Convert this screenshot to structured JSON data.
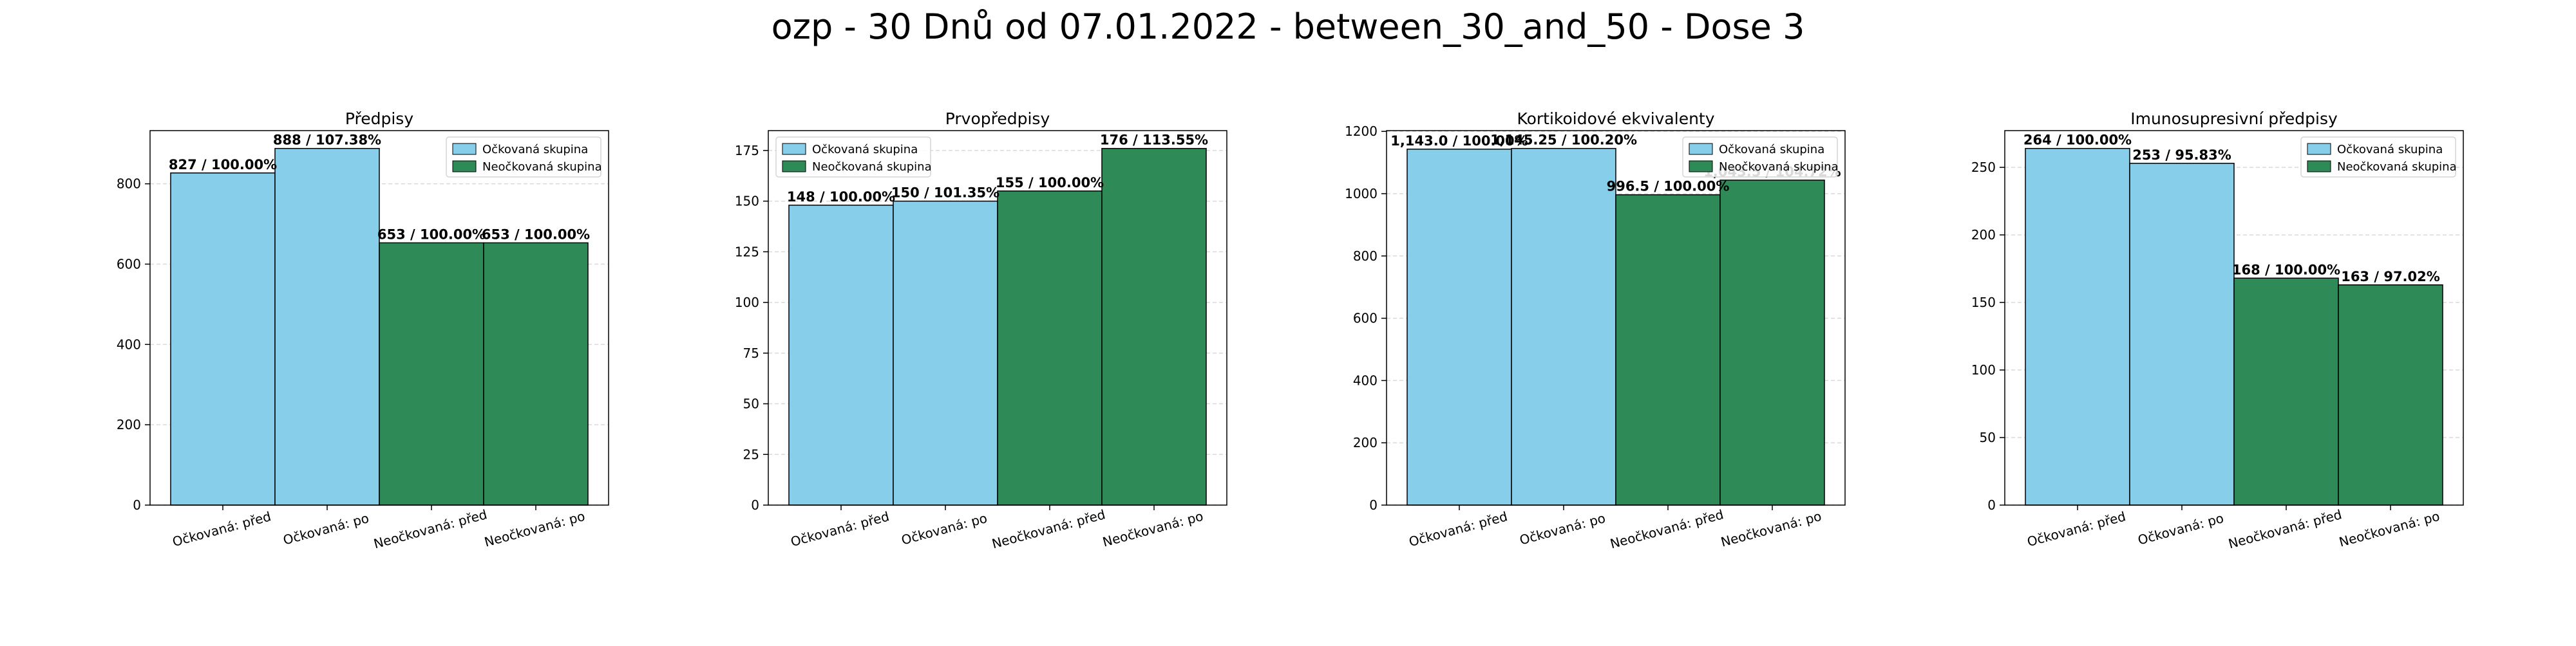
{
  "figure": {
    "suptitle": "ozp - 30 Dnů od 07.01.2022 - between_30_and_50 - Dose 3"
  },
  "colors": {
    "vaccinated": "#87CEEB",
    "unvaccinated": "#2E8B57",
    "edge": "#000000",
    "grid": "#d9d9d9"
  },
  "chart_data": [
    {
      "type": "bar",
      "title": "Předpisy",
      "categories": [
        "Očkovaná: před",
        "Očkovaná: po",
        "Neočkovaná: před",
        "Neočkovaná: po"
      ],
      "values": [
        827,
        888,
        653,
        653
      ],
      "bar_labels": [
        "827 / 100.00%",
        "888 / 107.38%",
        "653 / 100.00%",
        "653 / 100.00%"
      ],
      "bar_groups": [
        "vaccinated",
        "vaccinated",
        "unvaccinated",
        "unvaccinated"
      ],
      "ylim": [
        0,
        932.4
      ],
      "yticks": [
        0,
        200,
        400,
        600,
        800
      ],
      "ytick_labels": [
        "0",
        "200",
        "400",
        "600",
        "800"
      ],
      "legend": [
        "Očkovaná skupina",
        "Neočkovaná skupina"
      ],
      "legend_position": "upper right",
      "grid": true
    },
    {
      "type": "bar",
      "title": "Prvopředpisy",
      "categories": [
        "Očkovaná: před",
        "Očkovaná: po",
        "Neočkovaná: před",
        "Neočkovaná: po"
      ],
      "values": [
        148,
        150,
        155,
        176
      ],
      "bar_labels": [
        "148 / 100.00%",
        "150 / 101.35%",
        "155 / 100.00%",
        "176 / 113.55%"
      ],
      "bar_groups": [
        "vaccinated",
        "vaccinated",
        "unvaccinated",
        "unvaccinated"
      ],
      "ylim": [
        0,
        184.8
      ],
      "yticks": [
        0,
        25,
        50,
        75,
        100,
        125,
        150,
        175
      ],
      "ytick_labels": [
        "0",
        "25",
        "50",
        "75",
        "100",
        "125",
        "150",
        "175"
      ],
      "legend": [
        "Očkovaná skupina",
        "Neočkovaná skupina"
      ],
      "legend_position": "upper left",
      "grid": true
    },
    {
      "type": "bar",
      "title": "Kortikoidové ekvivalenty",
      "categories": [
        "Očkovaná: před",
        "Očkovaná: po",
        "Neočkovaná: před",
        "Neočkovaná: po"
      ],
      "values": [
        1143.0,
        1145.25,
        996.5,
        1043.5
      ],
      "bar_labels": [
        "1,143.0 / 100.00%",
        "1,145.25 / 100.20%",
        "996.5 / 100.00%",
        "1,043.5 / 104.72%"
      ],
      "bar_groups": [
        "vaccinated",
        "vaccinated",
        "unvaccinated",
        "unvaccinated"
      ],
      "ylim": [
        0,
        1202.5
      ],
      "yticks": [
        0,
        200,
        400,
        600,
        800,
        1000,
        1200
      ],
      "ytick_labels": [
        "0",
        "200",
        "400",
        "600",
        "800",
        "1000",
        "1200"
      ],
      "legend": [
        "Očkovaná skupina",
        "Neočkovaná skupina"
      ],
      "legend_position": "upper right",
      "grid": true
    },
    {
      "type": "bar",
      "title": "Imunosupresivní předpisy",
      "categories": [
        "Očkovaná: před",
        "Očkovaná: po",
        "Neočkovaná: před",
        "Neočkovaná: po"
      ],
      "values": [
        264,
        253,
        168,
        163
      ],
      "bar_labels": [
        "264 / 100.00%",
        "253 / 95.83%",
        "168 / 100.00%",
        "163 / 97.02%"
      ],
      "bar_groups": [
        "vaccinated",
        "vaccinated",
        "unvaccinated",
        "unvaccinated"
      ],
      "ylim": [
        0,
        277.2
      ],
      "yticks": [
        0,
        50,
        100,
        150,
        200,
        250
      ],
      "ytick_labels": [
        "0",
        "50",
        "100",
        "150",
        "200",
        "250"
      ],
      "legend": [
        "Očkovaná skupina",
        "Neočkovaná skupina"
      ],
      "legend_position": "upper right",
      "grid": true
    }
  ]
}
